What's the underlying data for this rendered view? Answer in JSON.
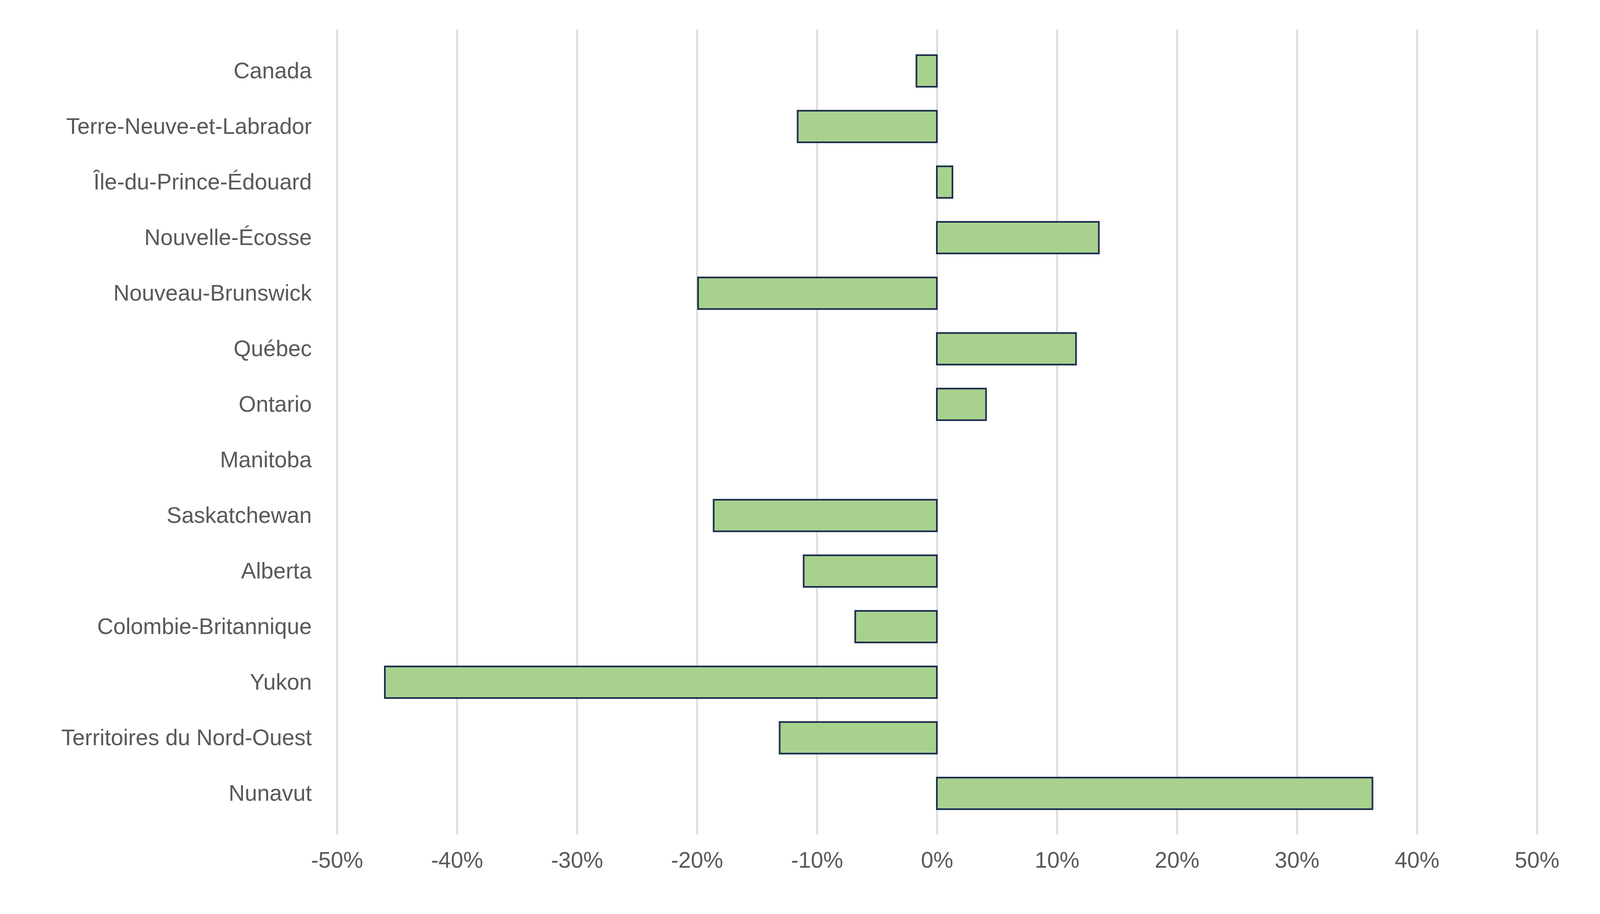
{
  "chart_data": {
    "type": "bar",
    "orientation": "horizontal",
    "categories": [
      "Canada",
      "Terre-Neuve-et-Labrador",
      "Île-du-Prince-Édouard",
      "Nouvelle-Écosse",
      "Nouveau-Brunswick",
      "Québec",
      "Ontario",
      "Manitoba",
      "Saskatchewan",
      "Alberta",
      "Colombie-Britannique",
      "Yukon",
      "Territoires du Nord-Ouest",
      "Nunavut"
    ],
    "values": [
      -1.7,
      -11.6,
      1.3,
      13.5,
      -19.9,
      11.6,
      4.1,
      0,
      -18.6,
      -11.1,
      -6.8,
      -46.0,
      -13.1,
      36.3
    ],
    "color": "#a9d18e",
    "xlim": [
      -50,
      50
    ],
    "xticks": [
      {
        "value": -50,
        "label": "-50%"
      },
      {
        "value": -40,
        "label": "-40%"
      },
      {
        "value": -30,
        "label": "-30%"
      },
      {
        "value": -20,
        "label": "-20%"
      },
      {
        "value": -10,
        "label": "-10%"
      },
      {
        "value": 0,
        "label": "0%"
      },
      {
        "value": 10,
        "label": "10%"
      },
      {
        "value": 20,
        "label": "20%"
      },
      {
        "value": 30,
        "label": "30%"
      },
      {
        "value": 40,
        "label": "40%"
      },
      {
        "value": 50,
        "label": "50%"
      }
    ],
    "grid": true
  }
}
